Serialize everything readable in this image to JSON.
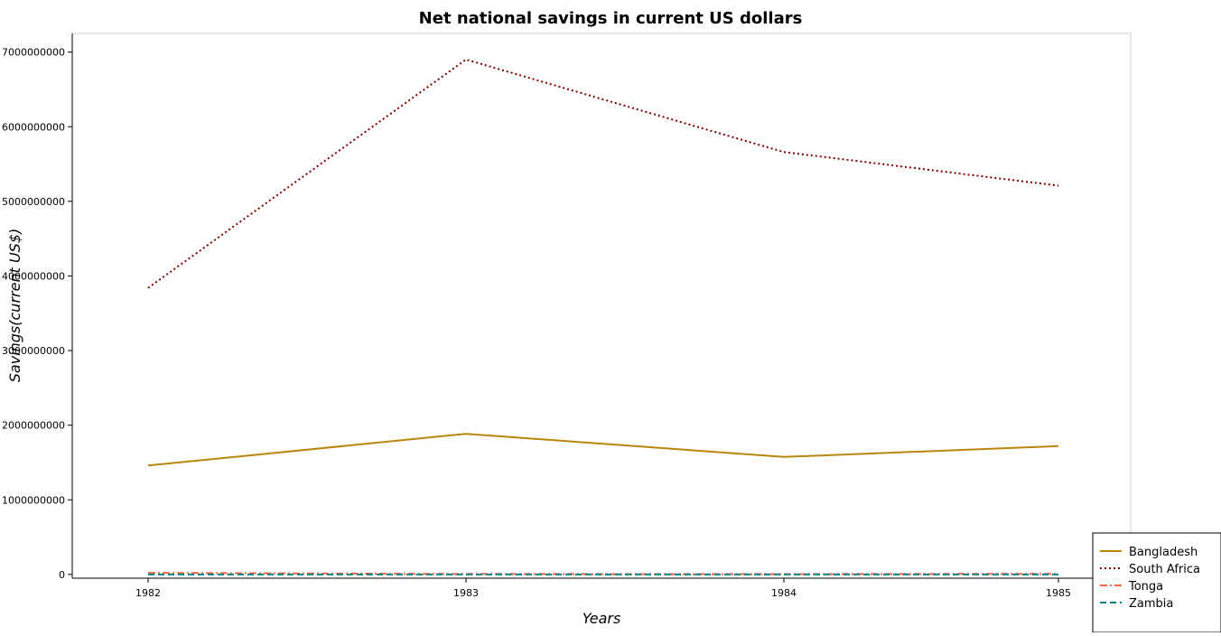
{
  "chart_data": {
    "type": "line",
    "title": "Net national savings in current US dollars",
    "xlabel": "Years",
    "ylabel": "Savings(current US$)",
    "x": [
      "1982",
      "1983",
      "1984",
      "1985"
    ],
    "ylim": [
      -50000000,
      7250000000
    ],
    "yticks": [
      0,
      1000000000,
      2000000000,
      3000000000,
      4000000000,
      5000000000,
      6000000000,
      7000000000
    ],
    "ytick_labels": [
      "0",
      "1000000000",
      "2000000000",
      "3000000000",
      "4000000000",
      "5000000000",
      "6000000000",
      "7000000000"
    ],
    "grid": false,
    "legend_position": "bottom-right",
    "series": [
      {
        "name": "Bangladesh",
        "color": "#b8860b",
        "dash": "solid",
        "values": [
          1460000000,
          1885000000,
          1575000000,
          1720000000
        ]
      },
      {
        "name": "South Africa",
        "color": "#800000",
        "dash": "dotted",
        "values": [
          3840000000,
          6900000000,
          5660000000,
          5210000000
        ]
      },
      {
        "name": "Tonga",
        "color": "#ff6347",
        "dash": "dashdot",
        "values": [
          22000000,
          6000000,
          5000000,
          8000000
        ]
      },
      {
        "name": "Zambia",
        "color": "#008080",
        "dash": "dashed",
        "values": [
          0,
          0,
          0,
          0
        ]
      }
    ]
  }
}
